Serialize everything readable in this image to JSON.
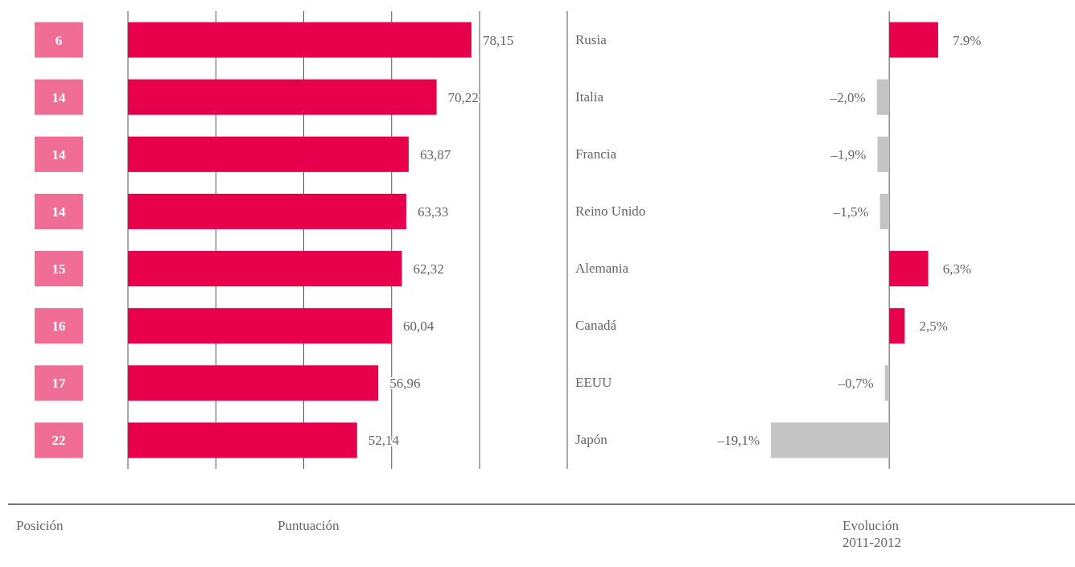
{
  "chart_data": [
    {
      "type": "bar",
      "orientation": "horizontal",
      "xlabel": "Puntuación",
      "ylabel": "Posición",
      "categories": [
        "6",
        "14",
        "14",
        "14",
        "15",
        "16",
        "17",
        "22"
      ],
      "values": [
        78.15,
        70.22,
        63.87,
        63.33,
        62.32,
        60.04,
        56.96,
        52.14
      ],
      "value_labels": [
        "78,15",
        "70,22",
        "63,87",
        "63,33",
        "62,32",
        "60,04",
        "56,96",
        "52,14"
      ],
      "color": "#e8004c",
      "xlim": [
        0,
        80
      ],
      "xticks": [
        {
          "value": 0,
          "label": null
        },
        {
          "value": 20,
          "label": null
        },
        {
          "value": 40,
          "label": null
        },
        {
          "value": 60,
          "label": null
        },
        {
          "value": 80,
          "label": null
        }
      ],
      "grid": "x",
      "tick_labels": "y"
    },
    {
      "type": "bar",
      "orientation": "horizontal",
      "xlabel": "Evolución\n2011-2012",
      "categories": [
        "Rusia",
        "Italia",
        "Francia",
        "Reino Unido",
        "Alemania",
        "Canadá",
        "EEUU",
        "Japón"
      ],
      "values": [
        7.9,
        -2.0,
        -1.9,
        -1.5,
        6.3,
        2.5,
        -0.7,
        -19.1
      ],
      "value_labels": [
        "7.9%",
        "–2,0%",
        "–1,9%",
        "–1,5%",
        "6,3%",
        "2,5%",
        "–0,7%",
        "–19,1%"
      ],
      "colors": [
        "#e8004c",
        "#c4c4c4",
        "#c4c4c4",
        "#c4c4c4",
        "#e8004c",
        "#e8004c",
        "#c4c4c4",
        "#c4c4c4"
      ],
      "xlim": [
        -52,
        30
      ],
      "xticks": [
        {
          "value": 0,
          "label": null
        }
      ],
      "tick_labels": "y"
    }
  ]
}
